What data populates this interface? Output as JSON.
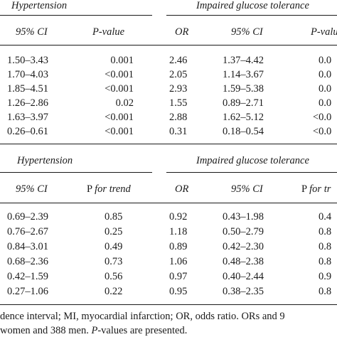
{
  "table1": {
    "group_headers": {
      "left": "Hypertension",
      "right": "Impaired glucose tolerance"
    },
    "col_headers": [
      "95% CI",
      "P-value",
      "OR",
      "95% CI",
      "P-valu"
    ],
    "rows": [
      [
        "1.50–3.43",
        "0.001",
        "2.46",
        "1.37–4.42",
        "0.0"
      ],
      [
        "1.70–4.03",
        "<0.001",
        "2.05",
        "1.14–3.67",
        "0.0"
      ],
      [
        "1.85–4.51",
        "<0.001",
        "2.93",
        "1.59–5.38",
        "0.0"
      ],
      [
        "1.26–2.86",
        "0.02",
        "1.55",
        "0.89–2.71",
        "0.0"
      ],
      [
        "1.63–3.97",
        "<0.001",
        "2.88",
        "1.62–5.12",
        "<0.0"
      ],
      [
        "0.26–0.61",
        "<0.001",
        "0.31",
        "0.18–0.54",
        "<0.0"
      ]
    ]
  },
  "table2": {
    "group_headers": {
      "left": "Hypertension",
      "right": "Impaired glucose tolerance"
    },
    "col_headers": [
      "95% CI",
      "P for trend",
      "OR",
      "95% CI",
      "P for tr"
    ],
    "rows": [
      [
        "0.69–2.39",
        "0.85",
        "0.92",
        "0.43–1.98",
        "0.4"
      ],
      [
        "0.76–2.67",
        "0.25",
        "1.18",
        "0.50–2.79",
        "0.8"
      ],
      [
        "0.84–3.01",
        "0.49",
        "0.89",
        "0.42–2.30",
        "0.8"
      ],
      [
        "0.68–2.36",
        "0.73",
        "1.06",
        "0.48–2.38",
        "0.8"
      ],
      [
        "0.42–1.59",
        "0.56",
        "0.97",
        "0.40–2.44",
        "0.9"
      ],
      [
        "0.27–1.06",
        "0.22",
        "0.95",
        "0.38–2.35",
        "0.8"
      ]
    ]
  },
  "footnote": {
    "line1": "dence interval; MI, myocardial infarction; OR, odds ratio. ORs and 9",
    "line2_pre": "women and 388 men. ",
    "line2_p": "P",
    "line2_post": "-values are presented."
  }
}
